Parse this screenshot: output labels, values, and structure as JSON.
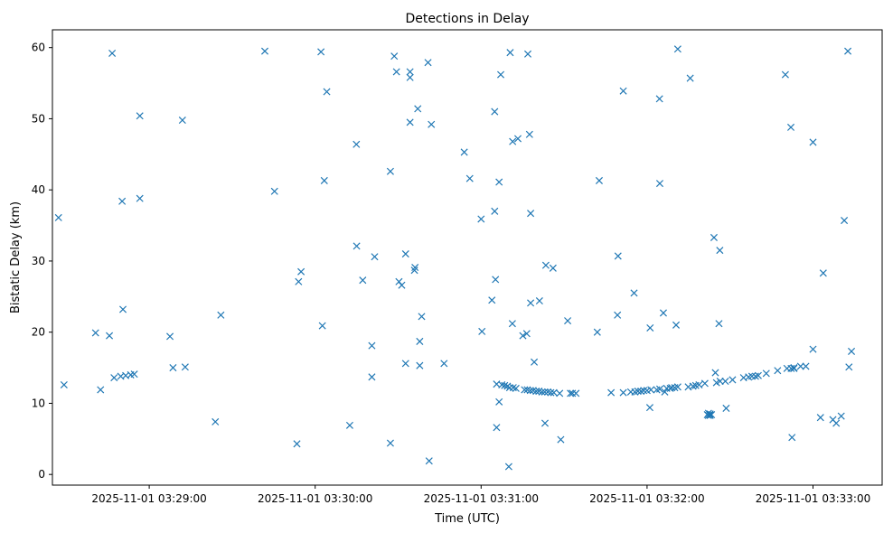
{
  "chart_data": {
    "type": "scatter",
    "title": "Detections in Delay",
    "xlabel": "Time (UTC)",
    "ylabel": "Bistatic Delay (km)",
    "marker": "x",
    "color": "#1f77b4",
    "grid": false,
    "legend": "none",
    "xlim": [
      "2025-11-01 03:28:25",
      "2025-11-01 03:33:25"
    ],
    "ylim": [
      -1.5,
      62.5
    ],
    "xticks": [
      {
        "t": "2025-11-01 03:29:00",
        "label": "2025-11-01 03:29:00"
      },
      {
        "t": "2025-11-01 03:30:00",
        "label": "2025-11-01 03:30:00"
      },
      {
        "t": "2025-11-01 03:31:00",
        "label": "2025-11-01 03:31:00"
      },
      {
        "t": "2025-11-01 03:32:00",
        "label": "2025-11-01 03:32:00"
      },
      {
        "t": "2025-11-01 03:33:00",
        "label": "2025-11-01 03:33:00"
      }
    ],
    "yticks": [
      0,
      10,
      20,
      30,
      40,
      50,
      60
    ],
    "points": [
      [
        "03:28:27.2",
        36.1
      ],
      [
        "03:28:29.2",
        12.6
      ],
      [
        "03:28:40.6",
        19.9
      ],
      [
        "03:28:42.4",
        11.9
      ],
      [
        "03:28:45.6",
        19.5
      ],
      [
        "03:28:46.6",
        59.2
      ],
      [
        "03:28:47.3",
        13.6
      ],
      [
        "03:28:49.7",
        13.8
      ],
      [
        "03:28:50.2",
        38.4
      ],
      [
        "03:28:50.5",
        23.2
      ],
      [
        "03:28:51.5",
        13.9
      ],
      [
        "03:28:53.3",
        14.0
      ],
      [
        "03:28:54.6",
        14.1
      ],
      [
        "03:28:56.6",
        50.4
      ],
      [
        "03:28:56.6",
        38.8
      ],
      [
        "03:29:07.5",
        19.4
      ],
      [
        "03:29:08.6",
        15.0
      ],
      [
        "03:29:12.0",
        49.8
      ],
      [
        "03:29:13.0",
        15.1
      ],
      [
        "03:29:23.9",
        7.4
      ],
      [
        "03:29:25.9",
        22.4
      ],
      [
        "03:29:41.8",
        59.5
      ],
      [
        "03:29:45.3",
        39.8
      ],
      [
        "03:29:53.4",
        4.3
      ],
      [
        "03:29:54.0",
        27.1
      ],
      [
        "03:29:54.9",
        28.5
      ],
      [
        "03:30:02.1",
        59.4
      ],
      [
        "03:30:02.6",
        20.9
      ],
      [
        "03:30:03.3",
        41.3
      ],
      [
        "03:30:04.2",
        53.8
      ],
      [
        "03:30:12.5",
        6.9
      ],
      [
        "03:30:14.9",
        46.4
      ],
      [
        "03:30:15.0",
        32.1
      ],
      [
        "03:30:17.2",
        27.3
      ],
      [
        "03:30:20.5",
        13.7
      ],
      [
        "03:30:20.5",
        18.1
      ],
      [
        "03:30:21.5",
        30.6
      ],
      [
        "03:30:27.2",
        42.6
      ],
      [
        "03:30:27.2",
        4.4
      ],
      [
        "03:30:28.6",
        58.8
      ],
      [
        "03:30:29.4",
        56.6
      ],
      [
        "03:30:30.3",
        27.1
      ],
      [
        "03:30:31.3",
        26.6
      ],
      [
        "03:30:32.7",
        15.6
      ],
      [
        "03:30:32.7",
        31.0
      ],
      [
        "03:30:34.3",
        56.6
      ],
      [
        "03:30:34.3",
        49.5
      ],
      [
        "03:30:34.3",
        55.8
      ],
      [
        "03:30:35.9",
        28.7
      ],
      [
        "03:30:36.1",
        29.1
      ],
      [
        "03:30:37.1",
        51.4
      ],
      [
        "03:30:37.8",
        18.7
      ],
      [
        "03:30:37.8",
        15.3
      ],
      [
        "03:30:38.5",
        22.2
      ],
      [
        "03:30:40.8",
        57.9
      ],
      [
        "03:30:41.2",
        1.9
      ],
      [
        "03:30:42.0",
        49.2
      ],
      [
        "03:30:46.6",
        15.6
      ],
      [
        "03:30:53.9",
        45.3
      ],
      [
        "03:30:55.9",
        41.6
      ],
      [
        "03:31:00.0",
        35.9
      ],
      [
        "03:31:00.3",
        20.1
      ],
      [
        "03:31:03.9",
        24.5
      ],
      [
        "03:31:04.9",
        51.0
      ],
      [
        "03:31:04.9",
        37.0
      ],
      [
        "03:31:05.2",
        27.4
      ],
      [
        "03:31:05.6",
        6.6
      ],
      [
        "03:31:05.6",
        12.7
      ],
      [
        "03:31:06.5",
        41.1
      ],
      [
        "03:31:06.5",
        10.2
      ],
      [
        "03:31:07.1",
        56.2
      ],
      [
        "03:31:07.5",
        12.6
      ],
      [
        "03:31:08.5",
        12.5
      ],
      [
        "03:31:09.5",
        12.4
      ],
      [
        "03:31:10.0",
        1.1
      ],
      [
        "03:31:10.3",
        12.2
      ],
      [
        "03:31:10.5",
        59.3
      ],
      [
        "03:31:11.3",
        21.2
      ],
      [
        "03:31:11.4",
        46.8
      ],
      [
        "03:31:11.6",
        12.2
      ],
      [
        "03:31:12.6",
        12.1
      ],
      [
        "03:31:13.3",
        47.2
      ],
      [
        "03:31:15.1",
        19.5
      ],
      [
        "03:31:15.7",
        11.9
      ],
      [
        "03:31:16.5",
        19.8
      ],
      [
        "03:31:16.7",
        11.9
      ],
      [
        "03:31:16.9",
        59.1
      ],
      [
        "03:31:17.5",
        47.8
      ],
      [
        "03:31:17.8",
        11.8
      ],
      [
        "03:31:17.9",
        24.1
      ],
      [
        "03:31:17.9",
        36.7
      ],
      [
        "03:31:18.8",
        11.8
      ],
      [
        "03:31:19.2",
        15.8
      ],
      [
        "03:31:19.9",
        11.7
      ],
      [
        "03:31:20.9",
        11.7
      ],
      [
        "03:31:21.1",
        24.4
      ],
      [
        "03:31:22.0",
        11.6
      ],
      [
        "03:31:23.0",
        11.6
      ],
      [
        "03:31:23.1",
        7.2
      ],
      [
        "03:31:23.4",
        29.4
      ],
      [
        "03:31:24.1",
        11.6
      ],
      [
        "03:31:25.2",
        11.5
      ],
      [
        "03:31:26.0",
        29.0
      ],
      [
        "03:31:26.3",
        11.5
      ],
      [
        "03:31:28.4",
        11.4
      ],
      [
        "03:31:28.8",
        4.9
      ],
      [
        "03:31:31.3",
        21.6
      ],
      [
        "03:31:32.3",
        11.4
      ],
      [
        "03:31:33.0",
        11.4
      ],
      [
        "03:31:34.3",
        11.4
      ],
      [
        "03:31:42.0",
        20.0
      ],
      [
        "03:31:42.7",
        41.3
      ],
      [
        "03:31:47.0",
        11.5
      ],
      [
        "03:31:49.3",
        22.4
      ],
      [
        "03:31:49.5",
        30.7
      ],
      [
        "03:31:51.4",
        11.5
      ],
      [
        "03:31:51.4",
        53.9
      ],
      [
        "03:31:54.1",
        11.6
      ],
      [
        "03:31:55.3",
        25.5
      ],
      [
        "03:31:55.6",
        11.6
      ],
      [
        "03:31:56.7",
        11.7
      ],
      [
        "03:31:57.8",
        11.7
      ],
      [
        "03:31:58.8",
        11.8
      ],
      [
        "03:32:00.0",
        11.8
      ],
      [
        "03:32:01.0",
        9.4
      ],
      [
        "03:32:01.1",
        20.6
      ],
      [
        "03:32:01.4",
        11.9
      ],
      [
        "03:32:03.5",
        11.9
      ],
      [
        "03:32:04.5",
        52.8
      ],
      [
        "03:32:04.6",
        12.0
      ],
      [
        "03:32:04.6",
        40.9
      ],
      [
        "03:32:05.9",
        22.7
      ],
      [
        "03:32:06.4",
        11.6
      ],
      [
        "03:32:07.1",
        12.1
      ],
      [
        "03:32:08.4",
        12.1
      ],
      [
        "03:32:08.9",
        12.2
      ],
      [
        "03:32:10.0",
        12.2
      ],
      [
        "03:32:10.5",
        21.0
      ],
      [
        "03:32:11.1",
        12.3
      ],
      [
        "03:32:11.1",
        59.8
      ],
      [
        "03:32:14.9",
        12.3
      ],
      [
        "03:32:15.6",
        55.7
      ],
      [
        "03:32:16.6",
        12.4
      ],
      [
        "03:32:17.6",
        12.5
      ],
      [
        "03:32:18.8",
        12.6
      ],
      [
        "03:32:20.9",
        12.8
      ],
      [
        "03:32:21.8",
        8.4
      ],
      [
        "03:32:22.2",
        8.6
      ],
      [
        "03:32:22.2",
        8.3
      ],
      [
        "03:32:22.8",
        8.5
      ],
      [
        "03:32:22.8",
        8.3
      ],
      [
        "03:32:23.3",
        8.4
      ],
      [
        "03:32:24.2",
        33.3
      ],
      [
        "03:32:24.7",
        14.3
      ],
      [
        "03:32:25.1",
        12.9
      ],
      [
        "03:32:26.0",
        21.2
      ],
      [
        "03:32:26.3",
        31.5
      ],
      [
        "03:32:26.4",
        13.1
      ],
      [
        "03:32:28.3",
        13.1
      ],
      [
        "03:32:28.6",
        9.3
      ],
      [
        "03:32:30.9",
        13.3
      ],
      [
        "03:32:34.9",
        13.6
      ],
      [
        "03:32:36.7",
        13.7
      ],
      [
        "03:32:37.9",
        13.8
      ],
      [
        "03:32:39.2",
        13.8
      ],
      [
        "03:32:40.2",
        13.9
      ],
      [
        "03:32:43.1",
        14.2
      ],
      [
        "03:32:47.2",
        14.6
      ],
      [
        "03:32:50.0",
        56.2
      ],
      [
        "03:32:50.6",
        14.9
      ],
      [
        "03:32:52.0",
        48.8
      ],
      [
        "03:32:52.1",
        14.9
      ],
      [
        "03:32:52.4",
        5.2
      ],
      [
        "03:32:53.1",
        15.0
      ],
      [
        "03:32:53.1",
        14.9
      ],
      [
        "03:32:55.5",
        15.2
      ],
      [
        "03:32:57.4",
        15.2
      ],
      [
        "03:33:00.0",
        46.7
      ],
      [
        "03:33:00.0",
        17.6
      ],
      [
        "03:33:02.7",
        8.0
      ],
      [
        "03:33:03.7",
        28.3
      ],
      [
        "03:33:07.2",
        7.7
      ],
      [
        "03:33:08.4",
        7.2
      ],
      [
        "03:33:10.2",
        8.2
      ],
      [
        "03:33:11.3",
        35.7
      ],
      [
        "03:33:12.6",
        59.5
      ],
      [
        "03:33:13.0",
        15.1
      ],
      [
        "03:33:13.9",
        17.3
      ]
    ]
  }
}
